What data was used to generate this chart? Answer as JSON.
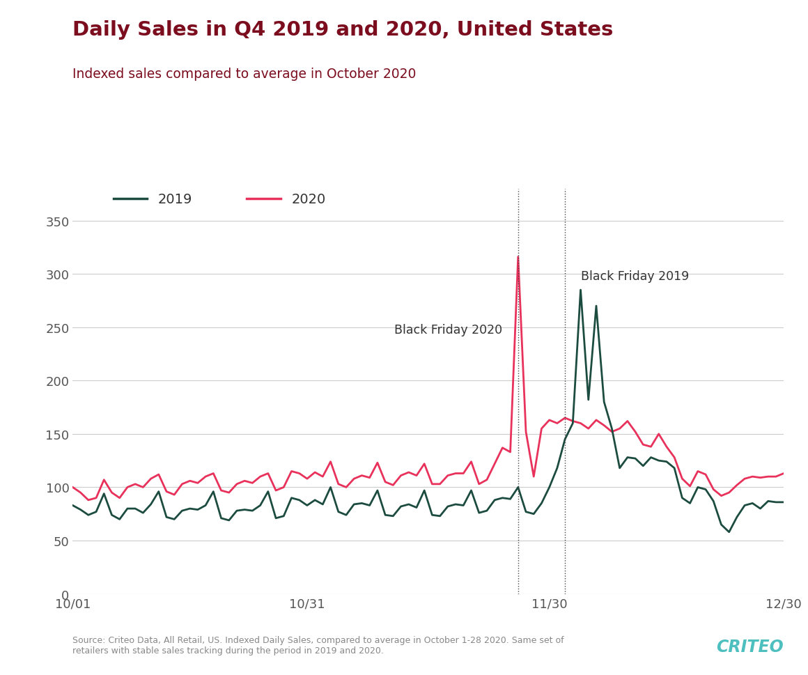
{
  "title": "Daily Sales in Q4 2019 and 2020, United States",
  "subtitle": "Indexed sales compared to average in October 2020",
  "source_text": "Source: Criteo Data, All Retail, US. Indexed Daily Sales, compared to average in October 1-28 2020. Same set of\nretailers with stable sales tracking during the period in 2019 and 2020.",
  "title_color": "#7B0D1E",
  "subtitle_color": "#7B0D1E",
  "color_2019": "#1C4B40",
  "color_2020": "#E8315B",
  "criteo_color": "#4DBFBF",
  "background_color": "#FFFFFF",
  "ylim": [
    0,
    380
  ],
  "yticks": [
    0,
    50,
    100,
    150,
    200,
    250,
    300,
    350
  ],
  "legend_2019": "2019",
  "legend_2020": "2020",
  "bf2020_label": "Black Friday 2020",
  "bf2019_label": "Black Friday 2019",
  "bf2020_x": 57,
  "bf2019_x": 63,
  "num_days": 92,
  "x_tick_labels": [
    "10/01",
    "10/31",
    "11/30",
    "12/30"
  ],
  "x_tick_positions": [
    0,
    30,
    61,
    91
  ],
  "data_2019": [
    83,
    79,
    74,
    77,
    94,
    74,
    70,
    80,
    80,
    76,
    84,
    96,
    72,
    70,
    78,
    80,
    79,
    83,
    96,
    71,
    69,
    78,
    79,
    78,
    83,
    96,
    71,
    73,
    90,
    88,
    83,
    88,
    84,
    100,
    77,
    74,
    84,
    85,
    83,
    97,
    74,
    73,
    82,
    84,
    81,
    97,
    74,
    73,
    82,
    84,
    83,
    97,
    76,
    78,
    88,
    90,
    89,
    100,
    77,
    75,
    85,
    100,
    118,
    145,
    160,
    285,
    182,
    270,
    180,
    155,
    118,
    128,
    127,
    120,
    128,
    125,
    124,
    118,
    90,
    85,
    100,
    98,
    87,
    65,
    58,
    72,
    83,
    85,
    80,
    87,
    86,
    86
  ],
  "data_2020": [
    100,
    95,
    88,
    90,
    107,
    95,
    90,
    100,
    103,
    100,
    108,
    112,
    96,
    93,
    103,
    106,
    104,
    110,
    113,
    97,
    95,
    103,
    106,
    104,
    110,
    113,
    97,
    100,
    115,
    113,
    108,
    114,
    110,
    124,
    103,
    100,
    108,
    111,
    109,
    123,
    105,
    102,
    111,
    114,
    111,
    122,
    103,
    103,
    111,
    113,
    113,
    124,
    103,
    107,
    122,
    137,
    133,
    316,
    152,
    110,
    155,
    163,
    160,
    165,
    162,
    160,
    155,
    163,
    158,
    152,
    155,
    162,
    152,
    140,
    138,
    150,
    138,
    128,
    108,
    101,
    115,
    112,
    98,
    92,
    95,
    102,
    108,
    110,
    109,
    110,
    110,
    113
  ]
}
